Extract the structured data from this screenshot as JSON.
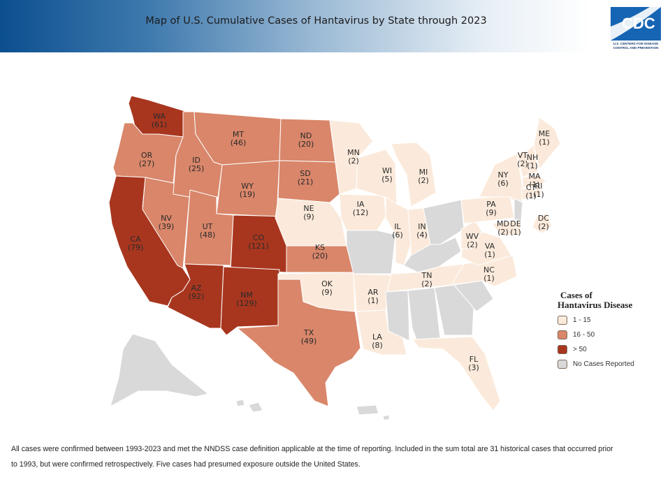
{
  "header": {
    "title": "Map of U.S. Cumulative Cases of Hantavirus by State through 2023",
    "logo_text": "CDC",
    "logo_subtext_1": "U.S. CENTERS FOR DISEASE",
    "logo_subtext_2": "CONTROL AND PREVENTION"
  },
  "colors": {
    "low": "#fbeadb",
    "mid": "#d9866a",
    "high": "#a8361f",
    "none": "#d9d9d9",
    "banner_dark": "#0c4f8f",
    "logo_blue": "#1565b4"
  },
  "legend": {
    "title_line1": "Cases of",
    "title_line2": "Hantavirus Disease",
    "items": [
      {
        "label": "1 - 15",
        "class": "low"
      },
      {
        "label": "16 - 50",
        "class": "mid"
      },
      {
        "label": "> 50",
        "class": "high"
      },
      {
        "label": "No Cases Reported",
        "class": "none"
      }
    ]
  },
  "states": [
    {
      "abbr": "WA",
      "cases": "(61)",
      "class": "high"
    },
    {
      "abbr": "OR",
      "cases": "(27)",
      "class": "mid"
    },
    {
      "abbr": "CA",
      "cases": "(79)",
      "class": "high"
    },
    {
      "abbr": "ID",
      "cases": "(25)",
      "class": "mid"
    },
    {
      "abbr": "NV",
      "cases": "(39)",
      "class": "mid"
    },
    {
      "abbr": "MT",
      "cases": "(46)",
      "class": "mid"
    },
    {
      "abbr": "WY",
      "cases": "(19)",
      "class": "mid"
    },
    {
      "abbr": "UT",
      "cases": "(48)",
      "class": "mid"
    },
    {
      "abbr": "AZ",
      "cases": "(92)",
      "class": "high"
    },
    {
      "abbr": "CO",
      "cases": "(121)",
      "class": "high"
    },
    {
      "abbr": "NM",
      "cases": "(129)",
      "class": "high"
    },
    {
      "abbr": "ND",
      "cases": "(20)",
      "class": "mid"
    },
    {
      "abbr": "SD",
      "cases": "(21)",
      "class": "mid"
    },
    {
      "abbr": "NE",
      "cases": "(9)",
      "class": "low"
    },
    {
      "abbr": "KS",
      "cases": "(20)",
      "class": "mid"
    },
    {
      "abbr": "OK",
      "cases": "(9)",
      "class": "low"
    },
    {
      "abbr": "TX",
      "cases": "(49)",
      "class": "mid"
    },
    {
      "abbr": "MN",
      "cases": "(2)",
      "class": "low"
    },
    {
      "abbr": "IA",
      "cases": "(12)",
      "class": "low"
    },
    {
      "abbr": "AR",
      "cases": "(1)",
      "class": "low"
    },
    {
      "abbr": "LA",
      "cases": "(8)",
      "class": "low"
    },
    {
      "abbr": "WI",
      "cases": "(5)",
      "class": "low"
    },
    {
      "abbr": "IL",
      "cases": "(6)",
      "class": "low"
    },
    {
      "abbr": "MI",
      "cases": "(2)",
      "class": "low"
    },
    {
      "abbr": "IN",
      "cases": "(4)",
      "class": "low"
    },
    {
      "abbr": "TN",
      "cases": "(2)",
      "class": "low"
    },
    {
      "abbr": "WV",
      "cases": "(2)",
      "class": "low"
    },
    {
      "abbr": "VA",
      "cases": "(1)",
      "class": "low"
    },
    {
      "abbr": "NC",
      "cases": "(1)",
      "class": "low"
    },
    {
      "abbr": "PA",
      "cases": "(9)",
      "class": "low"
    },
    {
      "abbr": "NY",
      "cases": "(6)",
      "class": "low"
    },
    {
      "abbr": "MD",
      "cases": "(2)",
      "class": "low"
    },
    {
      "abbr": "DE",
      "cases": "(1)",
      "class": "low"
    },
    {
      "abbr": "VT",
      "cases": "(2)",
      "class": "low"
    },
    {
      "abbr": "NH",
      "cases": "(1)",
      "class": "low"
    },
    {
      "abbr": "ME",
      "cases": "(1)",
      "class": "low"
    },
    {
      "abbr": "MA",
      "cases": "(1)",
      "class": "low"
    },
    {
      "abbr": "RI",
      "cases": "(1)",
      "class": "low"
    },
    {
      "abbr": "CT",
      "cases": "(1)",
      "class": "low"
    },
    {
      "abbr": "FL",
      "cases": "(3)",
      "class": "low"
    },
    {
      "abbr": "DC",
      "cases": "(2)",
      "class": "low"
    }
  ],
  "footnote": {
    "line1": "All cases were confirmed between 1993-2023 and met the NNDSS case definition applicable at the time of reporting. Included in the sum total are 31 historical cases that occurred prior",
    "line2": "to 1993, but were confirmed retrospectively. Five cases had presumed exposure outside the United States."
  }
}
